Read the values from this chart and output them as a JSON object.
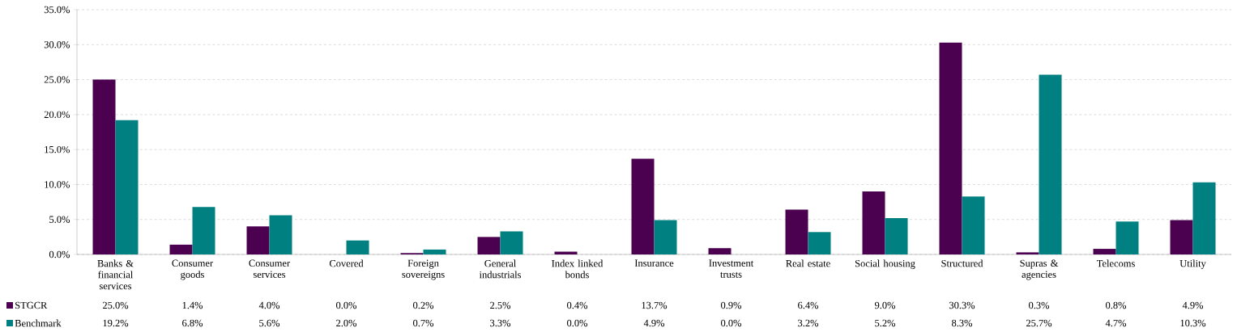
{
  "chart_data": {
    "type": "bar",
    "categories": [
      "Banks & financial services",
      "Consumer goods",
      "Consumer services",
      "Covered",
      "Foreign sovereigns",
      "General industrials",
      "Index linked bonds",
      "Insurance",
      "Investment trusts",
      "Real estate",
      "Social housing",
      "Structured",
      "Supras & agencies",
      "Telecoms",
      "Utility"
    ],
    "series": [
      {
        "name": "STGCR",
        "color": "#4b0050",
        "values": [
          25.0,
          1.4,
          4.0,
          0.0,
          0.2,
          2.5,
          0.4,
          13.7,
          0.9,
          6.4,
          9.0,
          30.3,
          0.3,
          0.8,
          4.9
        ],
        "value_labels": [
          "25.0%",
          "1.4%",
          "4.0%",
          "0.0%",
          "0.2%",
          "2.5%",
          "0.4%",
          "13.7%",
          "0.9%",
          "6.4%",
          "9.0%",
          "30.3%",
          "0.3%",
          "0.8%",
          "4.9%"
        ]
      },
      {
        "name": "Benchmark",
        "color": "#008080",
        "values": [
          19.2,
          6.8,
          5.6,
          2.0,
          0.7,
          3.3,
          0.0,
          4.9,
          0.0,
          3.2,
          5.2,
          8.3,
          25.7,
          4.7,
          10.3
        ],
        "value_labels": [
          "19.2%",
          "6.8%",
          "5.6%",
          "2.0%",
          "0.7%",
          "3.3%",
          "0.0%",
          "4.9%",
          "0.0%",
          "3.2%",
          "5.2%",
          "8.3%",
          "25.7%",
          "4.7%",
          "10.3%"
        ]
      }
    ],
    "ylim": [
      0,
      35
    ],
    "yticks": [
      {
        "value": 0,
        "label": "0.0%"
      },
      {
        "value": 5,
        "label": "5.0%"
      },
      {
        "value": 10,
        "label": "10.0%"
      },
      {
        "value": 15,
        "label": "15.0%"
      },
      {
        "value": 20,
        "label": "20.0%"
      },
      {
        "value": 25,
        "label": "25.0%"
      },
      {
        "value": 30,
        "label": "30.0%"
      },
      {
        "value": 35,
        "label": "35.0%"
      }
    ],
    "grid": "y",
    "legend": "bottom"
  }
}
